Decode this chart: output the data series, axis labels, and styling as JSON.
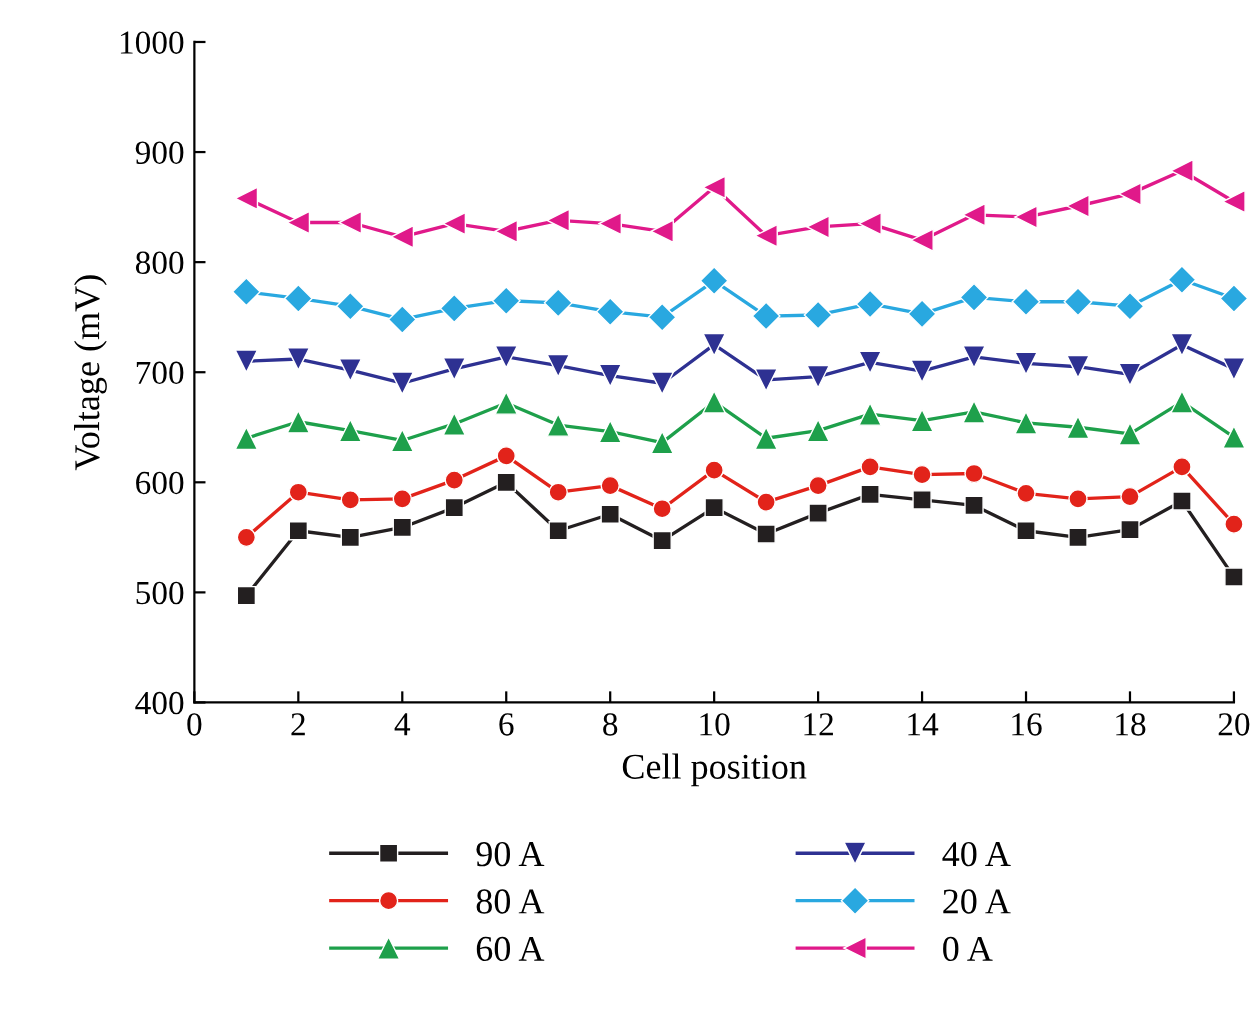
{
  "chart_data": {
    "type": "line",
    "xlabel": "Cell position",
    "ylabel": "Voltage (mV)",
    "x": [
      1,
      2,
      3,
      4,
      5,
      6,
      7,
      8,
      9,
      10,
      11,
      12,
      13,
      14,
      15,
      16,
      17,
      18,
      19,
      20
    ],
    "xlim": [
      0,
      20
    ],
    "xticks": [
      0,
      2,
      4,
      6,
      8,
      10,
      12,
      14,
      16,
      18,
      20
    ],
    "ylim": [
      400,
      1000
    ],
    "yticks": [
      400,
      500,
      600,
      700,
      800,
      900,
      1000
    ],
    "grid": false,
    "legend": "bottom",
    "line_style": "solid",
    "series": [
      {
        "name": "90 A",
        "color": "#231f20",
        "marker": "square",
        "values": [
          497,
          556,
          550,
          559,
          577,
          600,
          556,
          571,
          547,
          577,
          553,
          572,
          589,
          584,
          579,
          556,
          550,
          557,
          583,
          514
        ]
      },
      {
        "name": "80 A",
        "color": "#e2231a",
        "marker": "circle",
        "values": [
          550,
          591,
          584,
          585,
          602,
          624,
          591,
          597,
          576,
          611,
          582,
          597,
          614,
          607,
          608,
          590,
          585,
          587,
          614,
          562
        ]
      },
      {
        "name": "60 A",
        "color": "#1ea04b",
        "marker": "triangle",
        "values": [
          640,
          655,
          647,
          638,
          653,
          672,
          652,
          646,
          636,
          673,
          640,
          647,
          662,
          656,
          664,
          654,
          650,
          644,
          673,
          641
        ]
      },
      {
        "name": "40 A",
        "color": "#2e3192",
        "marker": "triangle_down",
        "values": [
          710,
          712,
          702,
          690,
          703,
          714,
          706,
          697,
          690,
          725,
          693,
          696,
          709,
          701,
          714,
          708,
          705,
          698,
          725,
          703
        ]
      },
      {
        "name": "20 A",
        "color": "#29a8e0",
        "marker": "diamond",
        "values": [
          773,
          767,
          760,
          748,
          758,
          765,
          763,
          755,
          750,
          783,
          751,
          752,
          762,
          753,
          768,
          764,
          764,
          760,
          784,
          767
        ]
      },
      {
        "name": "0 A",
        "color": "#e0198a",
        "marker": "triangle_left",
        "values": [
          858,
          836,
          836,
          823,
          835,
          828,
          838,
          835,
          828,
          868,
          824,
          832,
          835,
          820,
          843,
          841,
          851,
          862,
          883,
          855
        ]
      }
    ]
  }
}
